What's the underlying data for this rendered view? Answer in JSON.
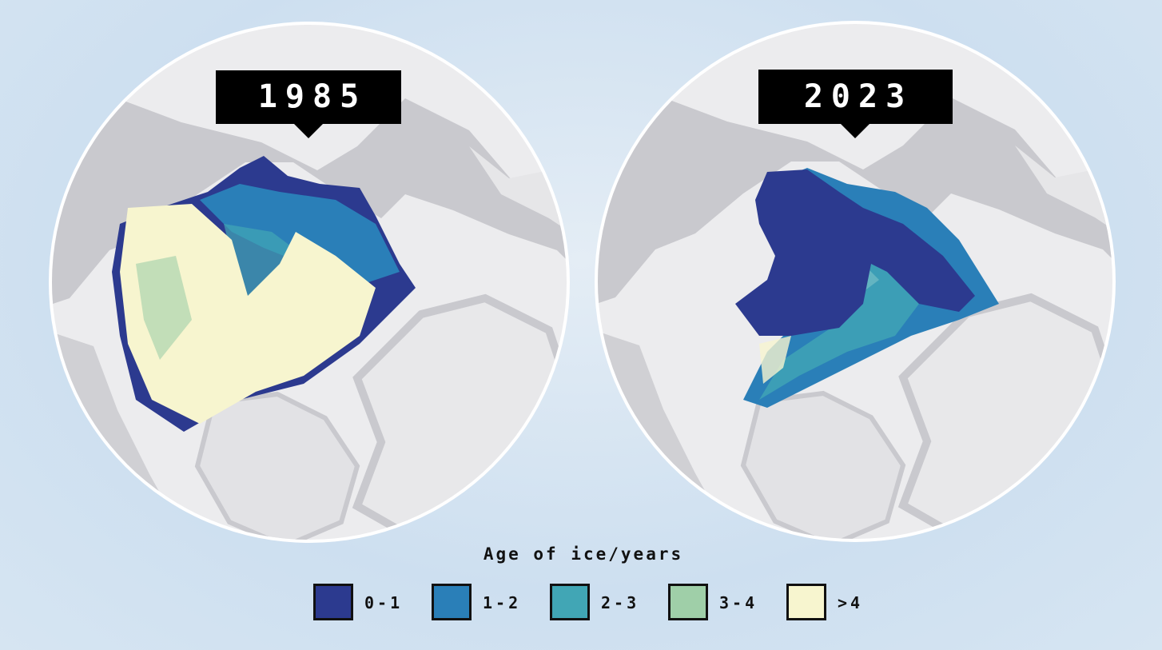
{
  "maps": [
    {
      "label": "1985"
    },
    {
      "label": "2023"
    }
  ],
  "legend": {
    "title": "Age of ice/years",
    "items": [
      {
        "label": "0-1",
        "color": "#2c3a8f"
      },
      {
        "label": "1-2",
        "color": "#2a7fb8"
      },
      {
        "label": "2-3",
        "color": "#41a6b5"
      },
      {
        "label": "3-4",
        "color": "#9fcfa8"
      },
      {
        "label": ">4",
        "color": "#f7f5cf"
      }
    ]
  }
}
